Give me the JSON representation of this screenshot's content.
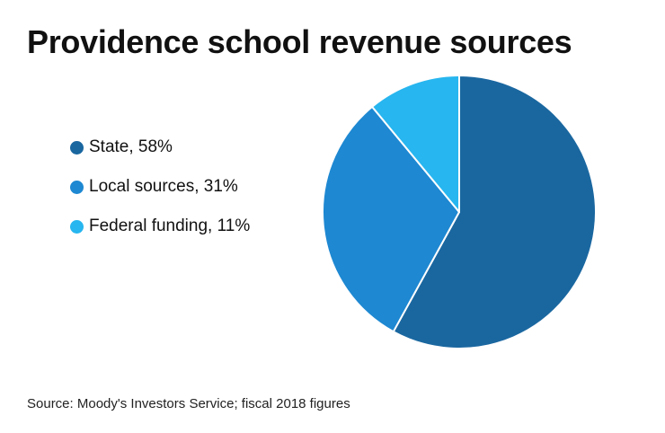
{
  "chart_data": {
    "type": "pie",
    "title": "Providence school revenue sources",
    "source": "Source: Moody's Investors Service; fiscal 2018 figures",
    "slices": [
      {
        "label": "State",
        "value": 58,
        "legend_text": "State, 58%",
        "color": "#1a67a0"
      },
      {
        "label": "Local sources",
        "value": 31,
        "legend_text": "Local sources, 31%",
        "color": "#1e88d2"
      },
      {
        "label": "Federal funding",
        "value": 11,
        "legend_text": "Federal funding, 11%",
        "color": "#27b6ef"
      }
    ],
    "start_angle_deg": 0,
    "direction": "clockwise",
    "legend_position": "left"
  }
}
